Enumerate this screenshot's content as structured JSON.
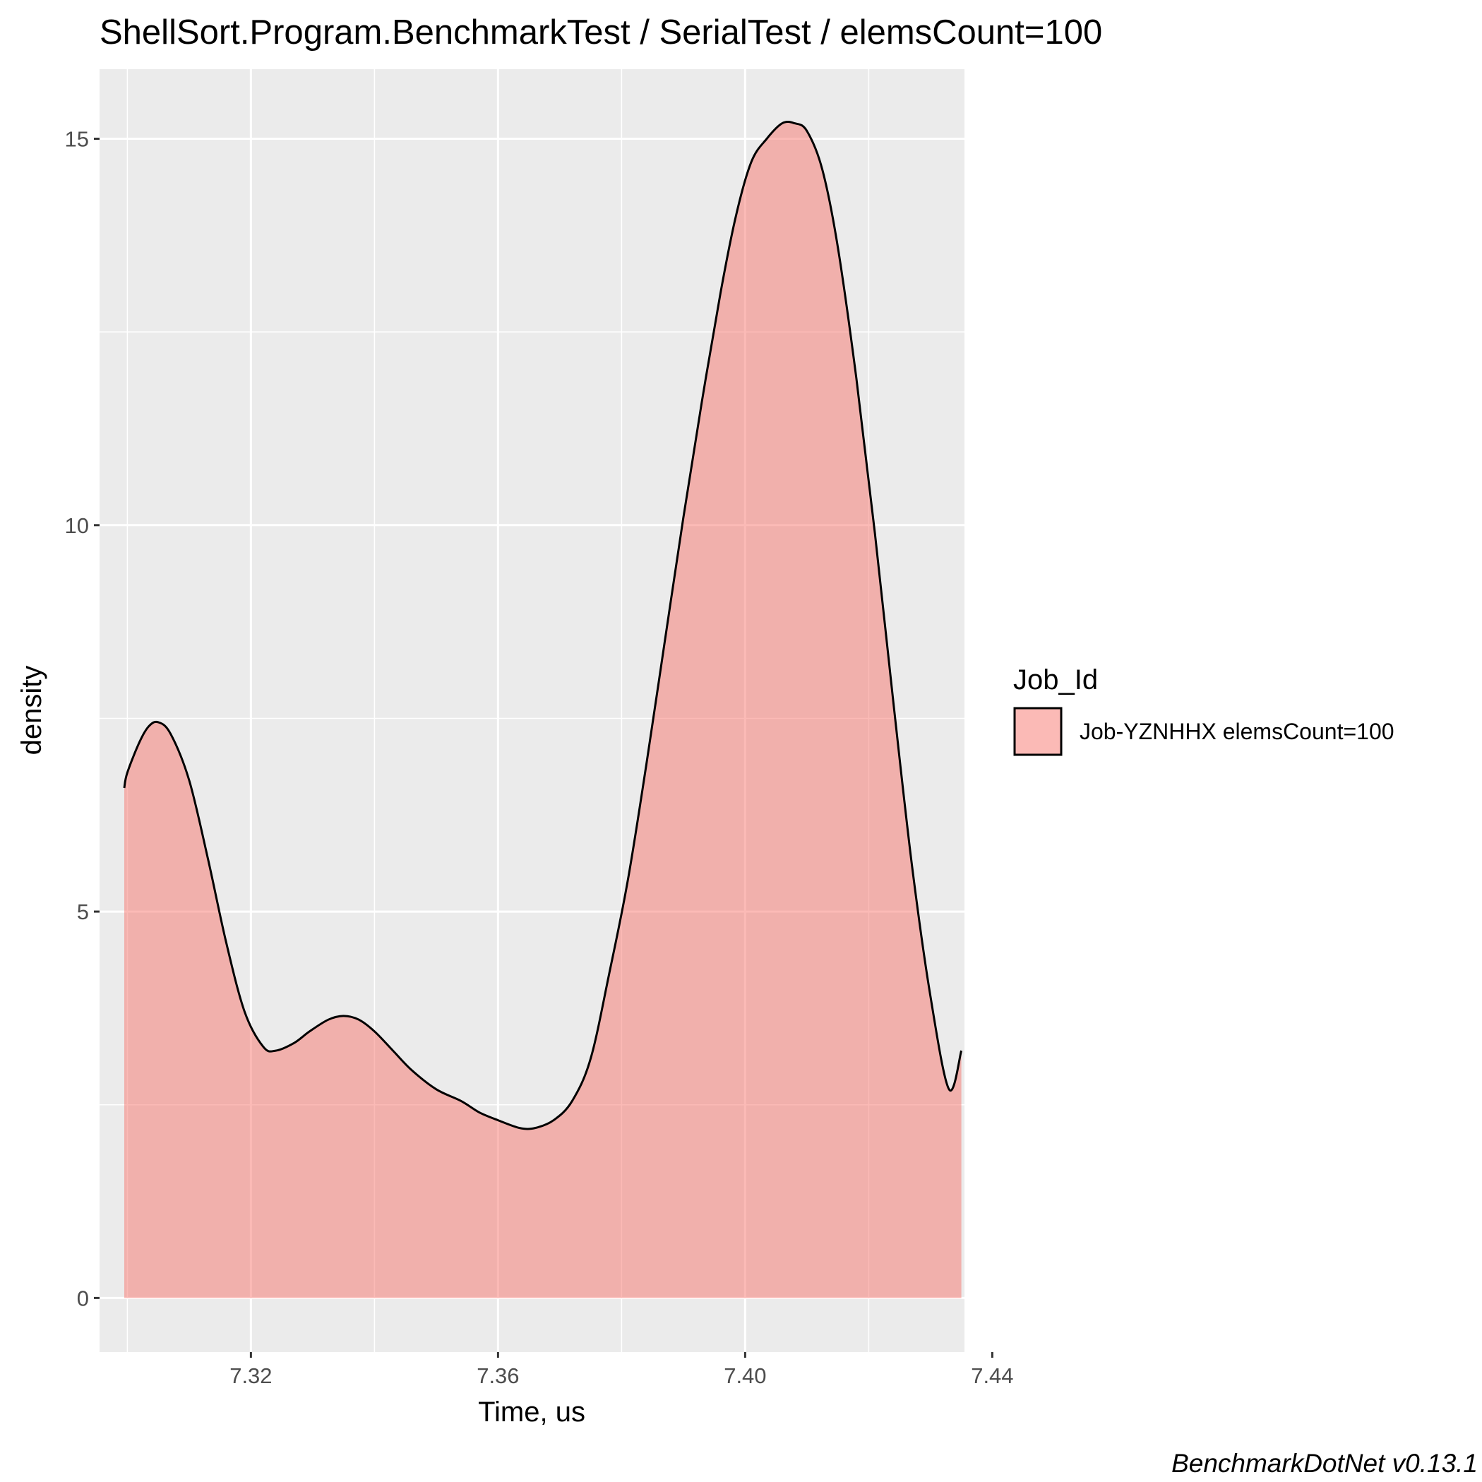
{
  "chart_data": {
    "type": "area",
    "title": "ShellSort.Program.BenchmarkTest / SerialTest / elemsCount=100",
    "xlabel": "Time, us",
    "ylabel": "density",
    "xlim": [
      7.2955,
      7.4355
    ],
    "ylim": [
      -0.7,
      15.9
    ],
    "x_ticks": [
      7.32,
      7.36,
      7.4,
      7.44
    ],
    "x_tick_labels": [
      "7.32",
      "7.36",
      "7.40",
      "7.44"
    ],
    "y_ticks": [
      0,
      5,
      10,
      15
    ],
    "y_tick_labels": [
      "0",
      "5",
      "10",
      "15"
    ],
    "grid": true,
    "legend": {
      "title": "Job_Id",
      "position": "right",
      "entries": [
        "Job-YZNHHX elemsCount=100"
      ]
    },
    "series": [
      {
        "name": "Job-YZNHHX elemsCount=100",
        "fill": "#f8766d",
        "fill_opacity": 0.5,
        "stroke": "#000000",
        "x": [
          7.2995,
          7.3,
          7.302,
          7.3035,
          7.305,
          7.307,
          7.31,
          7.313,
          7.316,
          7.319,
          7.322,
          7.324,
          7.327,
          7.3295,
          7.3325,
          7.335,
          7.3375,
          7.34,
          7.343,
          7.346,
          7.35,
          7.354,
          7.357,
          7.36,
          7.3635,
          7.366,
          7.369,
          7.372,
          7.375,
          7.378,
          7.381,
          7.384,
          7.387,
          7.39,
          7.393,
          7.396,
          7.3985,
          7.401,
          7.4035,
          7.406,
          7.408,
          7.41,
          7.4125,
          7.415,
          7.418,
          7.421,
          7.424,
          7.427,
          7.43,
          7.433,
          7.435
        ],
        "y": [
          6.6,
          6.8,
          7.2,
          7.4,
          7.45,
          7.3,
          6.7,
          5.7,
          4.6,
          3.7,
          3.25,
          3.2,
          3.3,
          3.45,
          3.6,
          3.65,
          3.6,
          3.45,
          3.2,
          2.95,
          2.7,
          2.55,
          2.4,
          2.3,
          2.2,
          2.2,
          2.3,
          2.55,
          3.1,
          4.2,
          5.4,
          6.9,
          8.5,
          10.1,
          11.6,
          13.0,
          14.0,
          14.7,
          15.0,
          15.2,
          15.2,
          15.1,
          14.6,
          13.6,
          11.9,
          9.9,
          7.7,
          5.6,
          3.9,
          2.7,
          3.2
        ]
      }
    ],
    "caption": "BenchmarkDotNet v0.13.1"
  }
}
